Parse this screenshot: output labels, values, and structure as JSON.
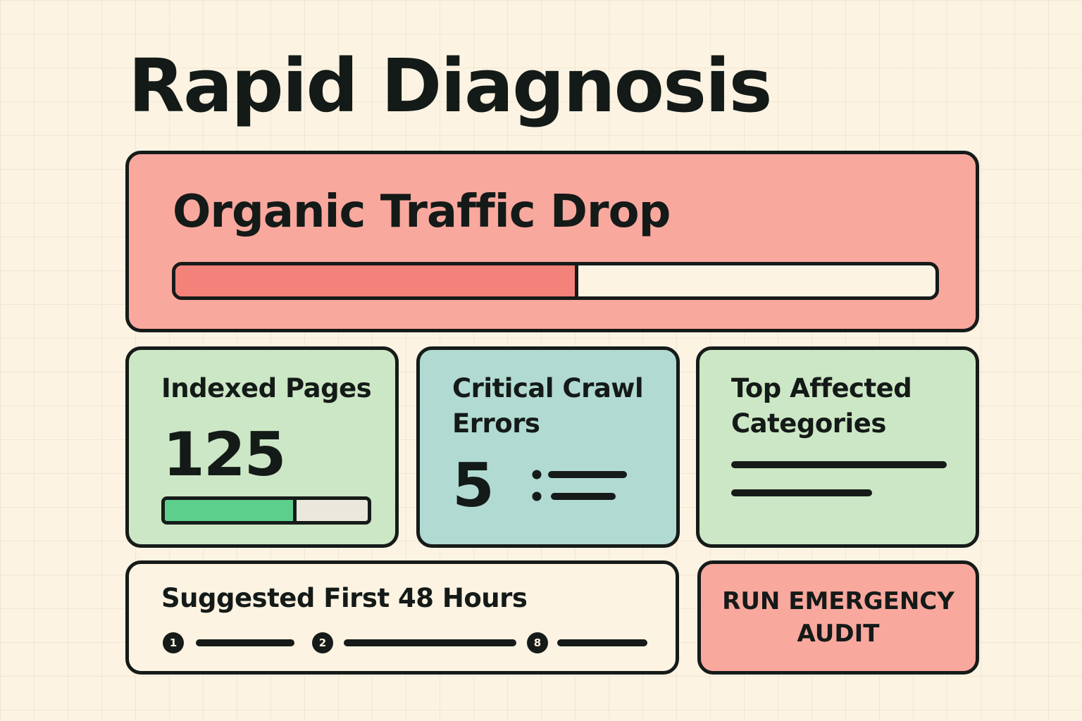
{
  "page": {
    "title": "Rapid Diagnosis"
  },
  "traffic": {
    "title": "Organic Traffic Drop",
    "progress_fraction": 0.53,
    "fill_color": "#f2827a",
    "card_color": "#f9a89e"
  },
  "indexed": {
    "label": "Indexed Pages",
    "value": "125",
    "progress_fraction": 0.65,
    "fill_color": "#5ccf8c",
    "card_color": "#cce7c5"
  },
  "crawl": {
    "label": "Critical Crawl Errors",
    "value": "5",
    "icon": "list-icon",
    "card_color": "#b1dad2"
  },
  "categories": {
    "label": "Top Affected Categories",
    "card_color": "#cce7c5"
  },
  "steps": {
    "title": "Suggested First 48 Hours",
    "items": [
      {
        "number": "1"
      },
      {
        "number": "2"
      },
      {
        "number": "8"
      }
    ]
  },
  "audit_button": {
    "label": "RUN EMERGENCY AUDIT",
    "color": "#f9a89e"
  }
}
